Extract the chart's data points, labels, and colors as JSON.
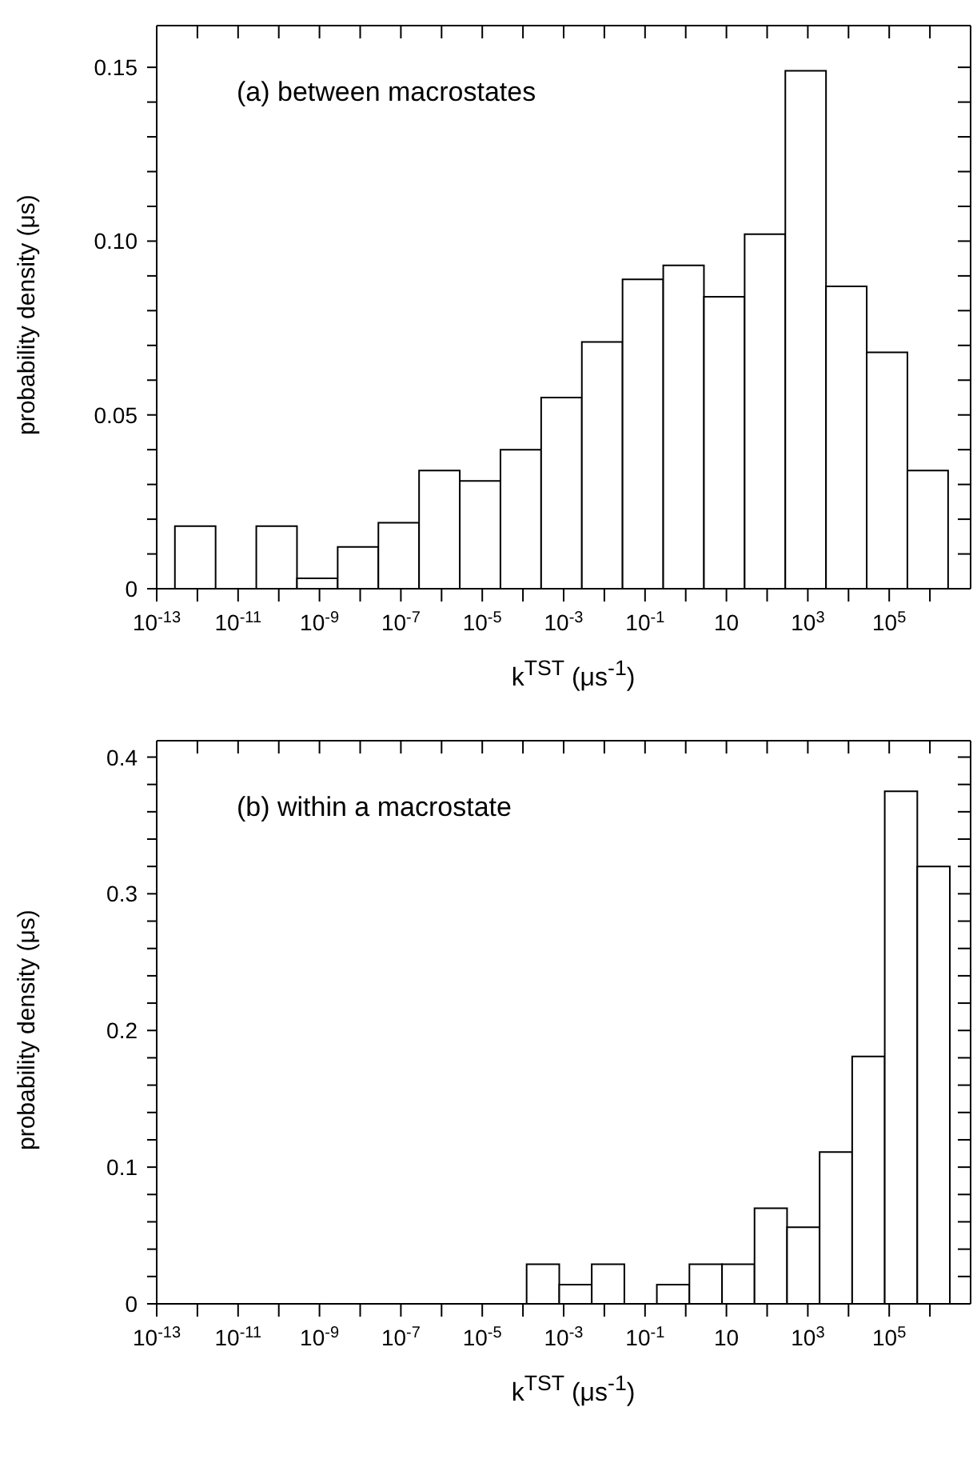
{
  "chart_data": [
    {
      "type": "histogram",
      "annotations": [
        "(a) between macrostates"
      ],
      "xlabel": "k$^{TST}$ (μs$^{-1}$)",
      "ylabel": "probability density (μs)",
      "log": "x",
      "color": "#ffffff",
      "bins": [
        2.8e-13,
        2.8e-12,
        2.8e-11,
        2.8e-10,
        2.8e-09,
        2.8e-08,
        2.8e-07,
        2.8e-06,
        2.8e-05,
        0.00028,
        0.0028,
        0.028,
        0.28,
        2.8,
        28,
        280,
        2800,
        28000,
        280000,
        2800000
      ],
      "values": [
        0.018,
        0,
        0.018,
        0.003,
        0.012,
        0.019,
        0.034,
        0.031,
        0.04,
        0.055,
        0.071,
        0.089,
        0.093,
        0.084,
        0.102,
        0.149,
        0.087,
        0.068,
        0.034
      ],
      "xlim": [
        1e-13,
        10000000.0
      ],
      "ylim": [
        0,
        0.162
      ],
      "xticks": [
        {
          "value": 1e-13,
          "label": "10$^{-13}$"
        },
        {
          "value": 1e-12,
          "label": null
        },
        {
          "value": 1e-11,
          "label": "10$^{-11}$"
        },
        {
          "value": 1e-10,
          "label": null
        },
        {
          "value": 1e-09,
          "label": "10$^{-9}$"
        },
        {
          "value": 1e-08,
          "label": null
        },
        {
          "value": 1e-07,
          "label": "10$^{-7}$"
        },
        {
          "value": 1e-06,
          "label": null
        },
        {
          "value": 1e-05,
          "label": "10$^{-5}$"
        },
        {
          "value": 0.0001,
          "label": null
        },
        {
          "value": 0.001,
          "label": "10$^{-3}$"
        },
        {
          "value": 0.01,
          "label": null
        },
        {
          "value": 0.1,
          "label": "10$^{-1}$"
        },
        {
          "value": 1,
          "label": null
        },
        {
          "value": 10,
          "label": "10"
        },
        {
          "value": 100,
          "label": null
        },
        {
          "value": 1000,
          "label": "10$^{3}$"
        },
        {
          "value": 10000,
          "label": null
        },
        {
          "value": 100000,
          "label": "10$^{5}$"
        },
        {
          "value": 1000000,
          "label": null
        }
      ],
      "yticks": [
        0,
        {
          "value": 0.01,
          "label": null
        },
        {
          "value": 0.02,
          "label": null
        },
        {
          "value": 0.03,
          "label": null
        },
        {
          "value": 0.04,
          "label": null
        },
        0.05,
        {
          "value": 0.06,
          "label": null
        },
        {
          "value": 0.07,
          "label": null
        },
        {
          "value": 0.08,
          "label": null
        },
        {
          "value": 0.09,
          "label": null
        },
        {
          "value": 0.1,
          "label": "0.10"
        },
        {
          "value": 0.11,
          "label": null
        },
        {
          "value": 0.12,
          "label": null
        },
        {
          "value": 0.13,
          "label": null
        },
        {
          "value": 0.14,
          "label": null
        },
        0.15
      ]
    },
    {
      "type": "histogram",
      "annotations": [
        "(b) within a macrostate"
      ],
      "xlabel": "k$^{TST}$ (μs$^{-1}$)",
      "ylabel": "probability density (μs)",
      "log": "x",
      "color": "#ffffff",
      "bins": [
        0.000123,
        0.00078,
        0.0049,
        0.031,
        0.195,
        1.23,
        7.8,
        49,
        309,
        1950,
        12300,
        77600,
        490000,
        3090000
      ],
      "values": [
        0.029,
        0.014,
        0.029,
        0,
        0.014,
        0.029,
        0.029,
        0.07,
        0.056,
        0.111,
        0.181,
        0.375,
        0.32
      ],
      "xlim": [
        1e-13,
        10000000.0
      ],
      "ylim": [
        0,
        0.412
      ],
      "xticks": [
        {
          "value": 1e-13,
          "label": "10$^{-13}$"
        },
        {
          "value": 1e-12,
          "label": null
        },
        {
          "value": 1e-11,
          "label": "10$^{-11}$"
        },
        {
          "value": 1e-10,
          "label": null
        },
        {
          "value": 1e-09,
          "label": "10$^{-9}$"
        },
        {
          "value": 1e-08,
          "label": null
        },
        {
          "value": 1e-07,
          "label": "10$^{-7}$"
        },
        {
          "value": 1e-06,
          "label": null
        },
        {
          "value": 1e-05,
          "label": "10$^{-5}$"
        },
        {
          "value": 0.0001,
          "label": null
        },
        {
          "value": 0.001,
          "label": "10$^{-3}$"
        },
        {
          "value": 0.01,
          "label": null
        },
        {
          "value": 0.1,
          "label": "10$^{-1}$"
        },
        {
          "value": 1,
          "label": null
        },
        {
          "value": 10,
          "label": "10"
        },
        {
          "value": 100,
          "label": null
        },
        {
          "value": 1000,
          "label": "10$^{3}$"
        },
        {
          "value": 10000,
          "label": null
        },
        {
          "value": 100000,
          "label": "10$^{5}$"
        },
        {
          "value": 1000000,
          "label": null
        }
      ],
      "yticks": [
        0,
        {
          "value": 0.02,
          "label": null
        },
        {
          "value": 0.04,
          "label": null
        },
        {
          "value": 0.06,
          "label": null
        },
        {
          "value": 0.08,
          "label": null
        },
        0.1,
        {
          "value": 0.12,
          "label": null
        },
        {
          "value": 0.14,
          "label": null
        },
        {
          "value": 0.16,
          "label": null
        },
        {
          "value": 0.18,
          "label": null
        },
        0.2,
        {
          "value": 0.22,
          "label": null
        },
        {
          "value": 0.24,
          "label": null
        },
        {
          "value": 0.26,
          "label": null
        },
        {
          "value": 0.28,
          "label": null
        },
        0.3,
        {
          "value": 0.32,
          "label": null
        },
        {
          "value": 0.34,
          "label": null
        },
        {
          "value": 0.36,
          "label": null
        },
        {
          "value": 0.38,
          "label": null
        },
        0.4
      ]
    }
  ]
}
